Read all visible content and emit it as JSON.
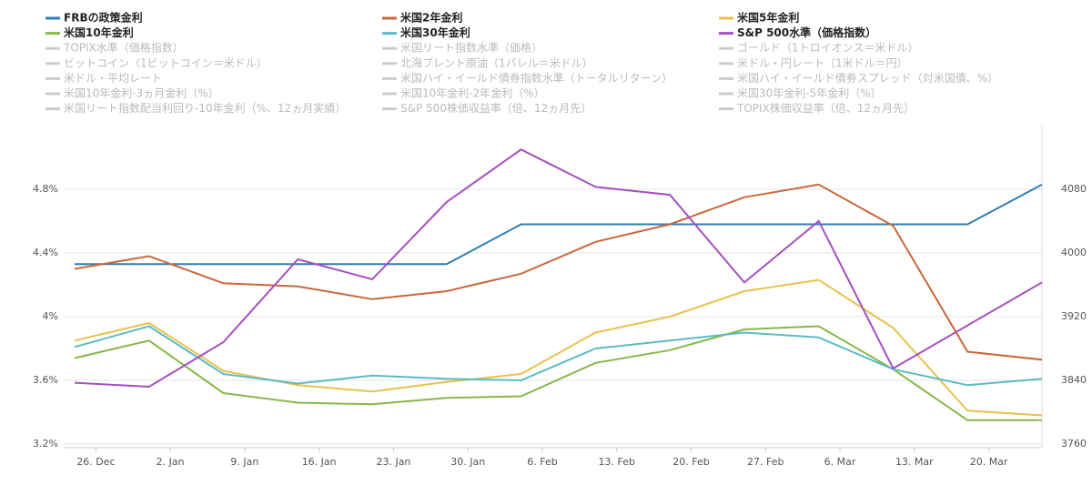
{
  "chart_data": {
    "type": "line",
    "x": [
      -2,
      5,
      12,
      19,
      26,
      33,
      40,
      47,
      54,
      61,
      68,
      75,
      82,
      89
    ],
    "xlim": [
      -3,
      90
    ],
    "xticks": [
      {
        "value": 0,
        "label": "26. Dec"
      },
      {
        "value": 7,
        "label": "2. Jan"
      },
      {
        "value": 14,
        "label": "9. Jan"
      },
      {
        "value": 21,
        "label": "16. Jan"
      },
      {
        "value": 28,
        "label": "23. Jan"
      },
      {
        "value": 35,
        "label": "30. Jan"
      },
      {
        "value": 42,
        "label": "6. Feb"
      },
      {
        "value": 49,
        "label": "13. Feb"
      },
      {
        "value": 56,
        "label": "20. Feb"
      },
      {
        "value": 63,
        "label": "27. Feb"
      },
      {
        "value": 70,
        "label": "6. Mar"
      },
      {
        "value": 77,
        "label": "13. Mar"
      },
      {
        "value": 84,
        "label": "20. Mar"
      }
    ],
    "ylim": [
      3.2,
      5.2
    ],
    "yticks": [
      {
        "value": 3.2,
        "label": "3.2%"
      },
      {
        "value": 3.6,
        "label": "3.6%"
      },
      {
        "value": 4,
        "label": "4%"
      },
      {
        "value": 4.4,
        "label": "4.4%"
      },
      {
        "value": 4.8,
        "label": "4.8%"
      }
    ],
    "y2lim": [
      3760,
      4160
    ],
    "y2ticks": [
      3760,
      3840,
      3920,
      4000,
      4080
    ],
    "grid": true,
    "series": [
      {
        "name": "FRBの政策金利",
        "color": "#2f7fb5",
        "values": [
          4.33,
          4.33,
          4.33,
          4.33,
          4.33,
          4.33,
          4.58,
          4.58,
          4.58,
          4.58,
          4.58,
          4.58,
          4.58,
          4.83
        ]
      },
      {
        "name": "米国2年金利",
        "color": "#c8683a",
        "values": [
          4.3,
          4.38,
          4.21,
          4.19,
          4.11,
          4.16,
          4.27,
          4.47,
          4.58,
          4.75,
          4.83,
          4.57,
          3.78,
          3.73
        ]
      },
      {
        "name": "米国5年金利",
        "color": "#e8c24e",
        "values": [
          3.85,
          3.96,
          3.66,
          3.57,
          3.53,
          3.59,
          3.64,
          3.9,
          4.0,
          4.16,
          4.23,
          3.93,
          3.41,
          3.38
        ]
      },
      {
        "name": "米国10年金利",
        "color": "#86b84a",
        "values": [
          3.74,
          3.85,
          3.52,
          3.46,
          3.45,
          3.49,
          3.5,
          3.71,
          3.79,
          3.92,
          3.94,
          3.67,
          3.35,
          3.35
        ]
      },
      {
        "name": "米国30年金利",
        "color": "#5bbcc4",
        "values": [
          3.81,
          3.94,
          3.64,
          3.58,
          3.63,
          3.61,
          3.6,
          3.8,
          3.85,
          3.9,
          3.87,
          3.67,
          3.57,
          3.61
        ]
      },
      {
        "name": "S&P 500水準（価格指数）",
        "color": "#a64fbf",
        "axis": "y2",
        "values": [
          3837,
          3832,
          3888,
          3992,
          3967,
          4064,
          4130,
          4083,
          4073,
          3963,
          4040,
          3855,
          3909,
          3963
        ]
      }
    ],
    "legend_inactive": [
      "TOPIX水準（価格指数）",
      "米国リート指数水準（価格）",
      "ゴールド（1トロイオンス＝米ドル）",
      "ビットコイン（1ビットコイン＝米ドル）",
      "北海ブレント原油（1バレル＝米ドル）",
      "米ドル・円レート（1米ドル＝円）",
      "米ドル・平均レート",
      "米国ハイ・イールド債券指数水準（トータルリターン）",
      "米国ハイ・イールド債券スプレッド（対米国債、%）",
      "米国10年金利-3ヵ月金利（%）",
      "米国10年金利-2年金利（%）",
      "米国30年金利-5年金利（%）",
      "米国リート指数配当利回り-10年金利（%、12ヵ月実績）",
      "S&P 500株価収益率（倍、12ヵ月先）",
      "TOPIX株価収益率（倍、12ヵ月先）"
    ]
  }
}
